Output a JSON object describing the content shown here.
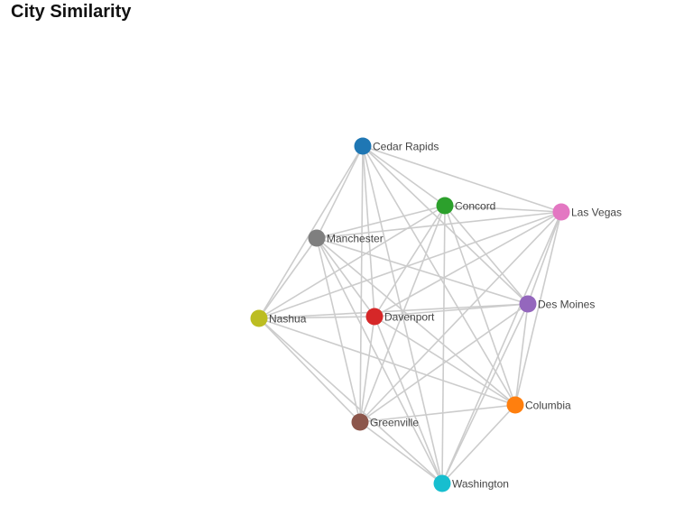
{
  "title": "City Similarity",
  "graph": {
    "nodes": [
      {
        "id": "cedar-rapids",
        "label": "Cedar Rapids",
        "color": "#1f77b4"
      },
      {
        "id": "concord",
        "label": "Concord",
        "color": "#2ca02c"
      },
      {
        "id": "las-vegas",
        "label": "Las Vegas",
        "color": "#e377c2"
      },
      {
        "id": "manchester",
        "label": "Manchester",
        "color": "#7f7f7f"
      },
      {
        "id": "des-moines",
        "label": "Des Moines",
        "color": "#9467bd"
      },
      {
        "id": "nashua",
        "label": "Nashua",
        "color": "#bcbd22"
      },
      {
        "id": "davenport",
        "label": "Davenport",
        "color": "#d62728"
      },
      {
        "id": "columbia",
        "label": "Columbia",
        "color": "#ff7f0e"
      },
      {
        "id": "greenville",
        "label": "Greenville",
        "color": "#8c564b"
      },
      {
        "id": "washington",
        "label": "Washington",
        "color": "#17becf"
      }
    ],
    "edges": [
      [
        "cedar-rapids",
        "concord"
      ],
      [
        "cedar-rapids",
        "las-vegas"
      ],
      [
        "cedar-rapids",
        "manchester"
      ],
      [
        "cedar-rapids",
        "des-moines"
      ],
      [
        "cedar-rapids",
        "nashua"
      ],
      [
        "cedar-rapids",
        "davenport"
      ],
      [
        "cedar-rapids",
        "columbia"
      ],
      [
        "cedar-rapids",
        "greenville"
      ],
      [
        "cedar-rapids",
        "washington"
      ],
      [
        "concord",
        "las-vegas"
      ],
      [
        "concord",
        "manchester"
      ],
      [
        "concord",
        "des-moines"
      ],
      [
        "concord",
        "nashua"
      ],
      [
        "concord",
        "davenport"
      ],
      [
        "concord",
        "columbia"
      ],
      [
        "concord",
        "greenville"
      ],
      [
        "concord",
        "washington"
      ],
      [
        "las-vegas",
        "manchester"
      ],
      [
        "las-vegas",
        "des-moines"
      ],
      [
        "las-vegas",
        "nashua"
      ],
      [
        "las-vegas",
        "davenport"
      ],
      [
        "las-vegas",
        "columbia"
      ],
      [
        "las-vegas",
        "greenville"
      ],
      [
        "las-vegas",
        "washington"
      ],
      [
        "manchester",
        "des-moines"
      ],
      [
        "manchester",
        "nashua"
      ],
      [
        "manchester",
        "davenport"
      ],
      [
        "manchester",
        "columbia"
      ],
      [
        "manchester",
        "greenville"
      ],
      [
        "manchester",
        "washington"
      ],
      [
        "des-moines",
        "nashua"
      ],
      [
        "des-moines",
        "davenport"
      ],
      [
        "des-moines",
        "columbia"
      ],
      [
        "des-moines",
        "greenville"
      ],
      [
        "des-moines",
        "washington"
      ],
      [
        "nashua",
        "davenport"
      ],
      [
        "nashua",
        "columbia"
      ],
      [
        "nashua",
        "greenville"
      ],
      [
        "nashua",
        "washington"
      ],
      [
        "davenport",
        "columbia"
      ],
      [
        "davenport",
        "greenville"
      ],
      [
        "davenport",
        "washington"
      ],
      [
        "columbia",
        "greenville"
      ],
      [
        "columbia",
        "washington"
      ],
      [
        "greenville",
        "washington"
      ]
    ]
  }
}
